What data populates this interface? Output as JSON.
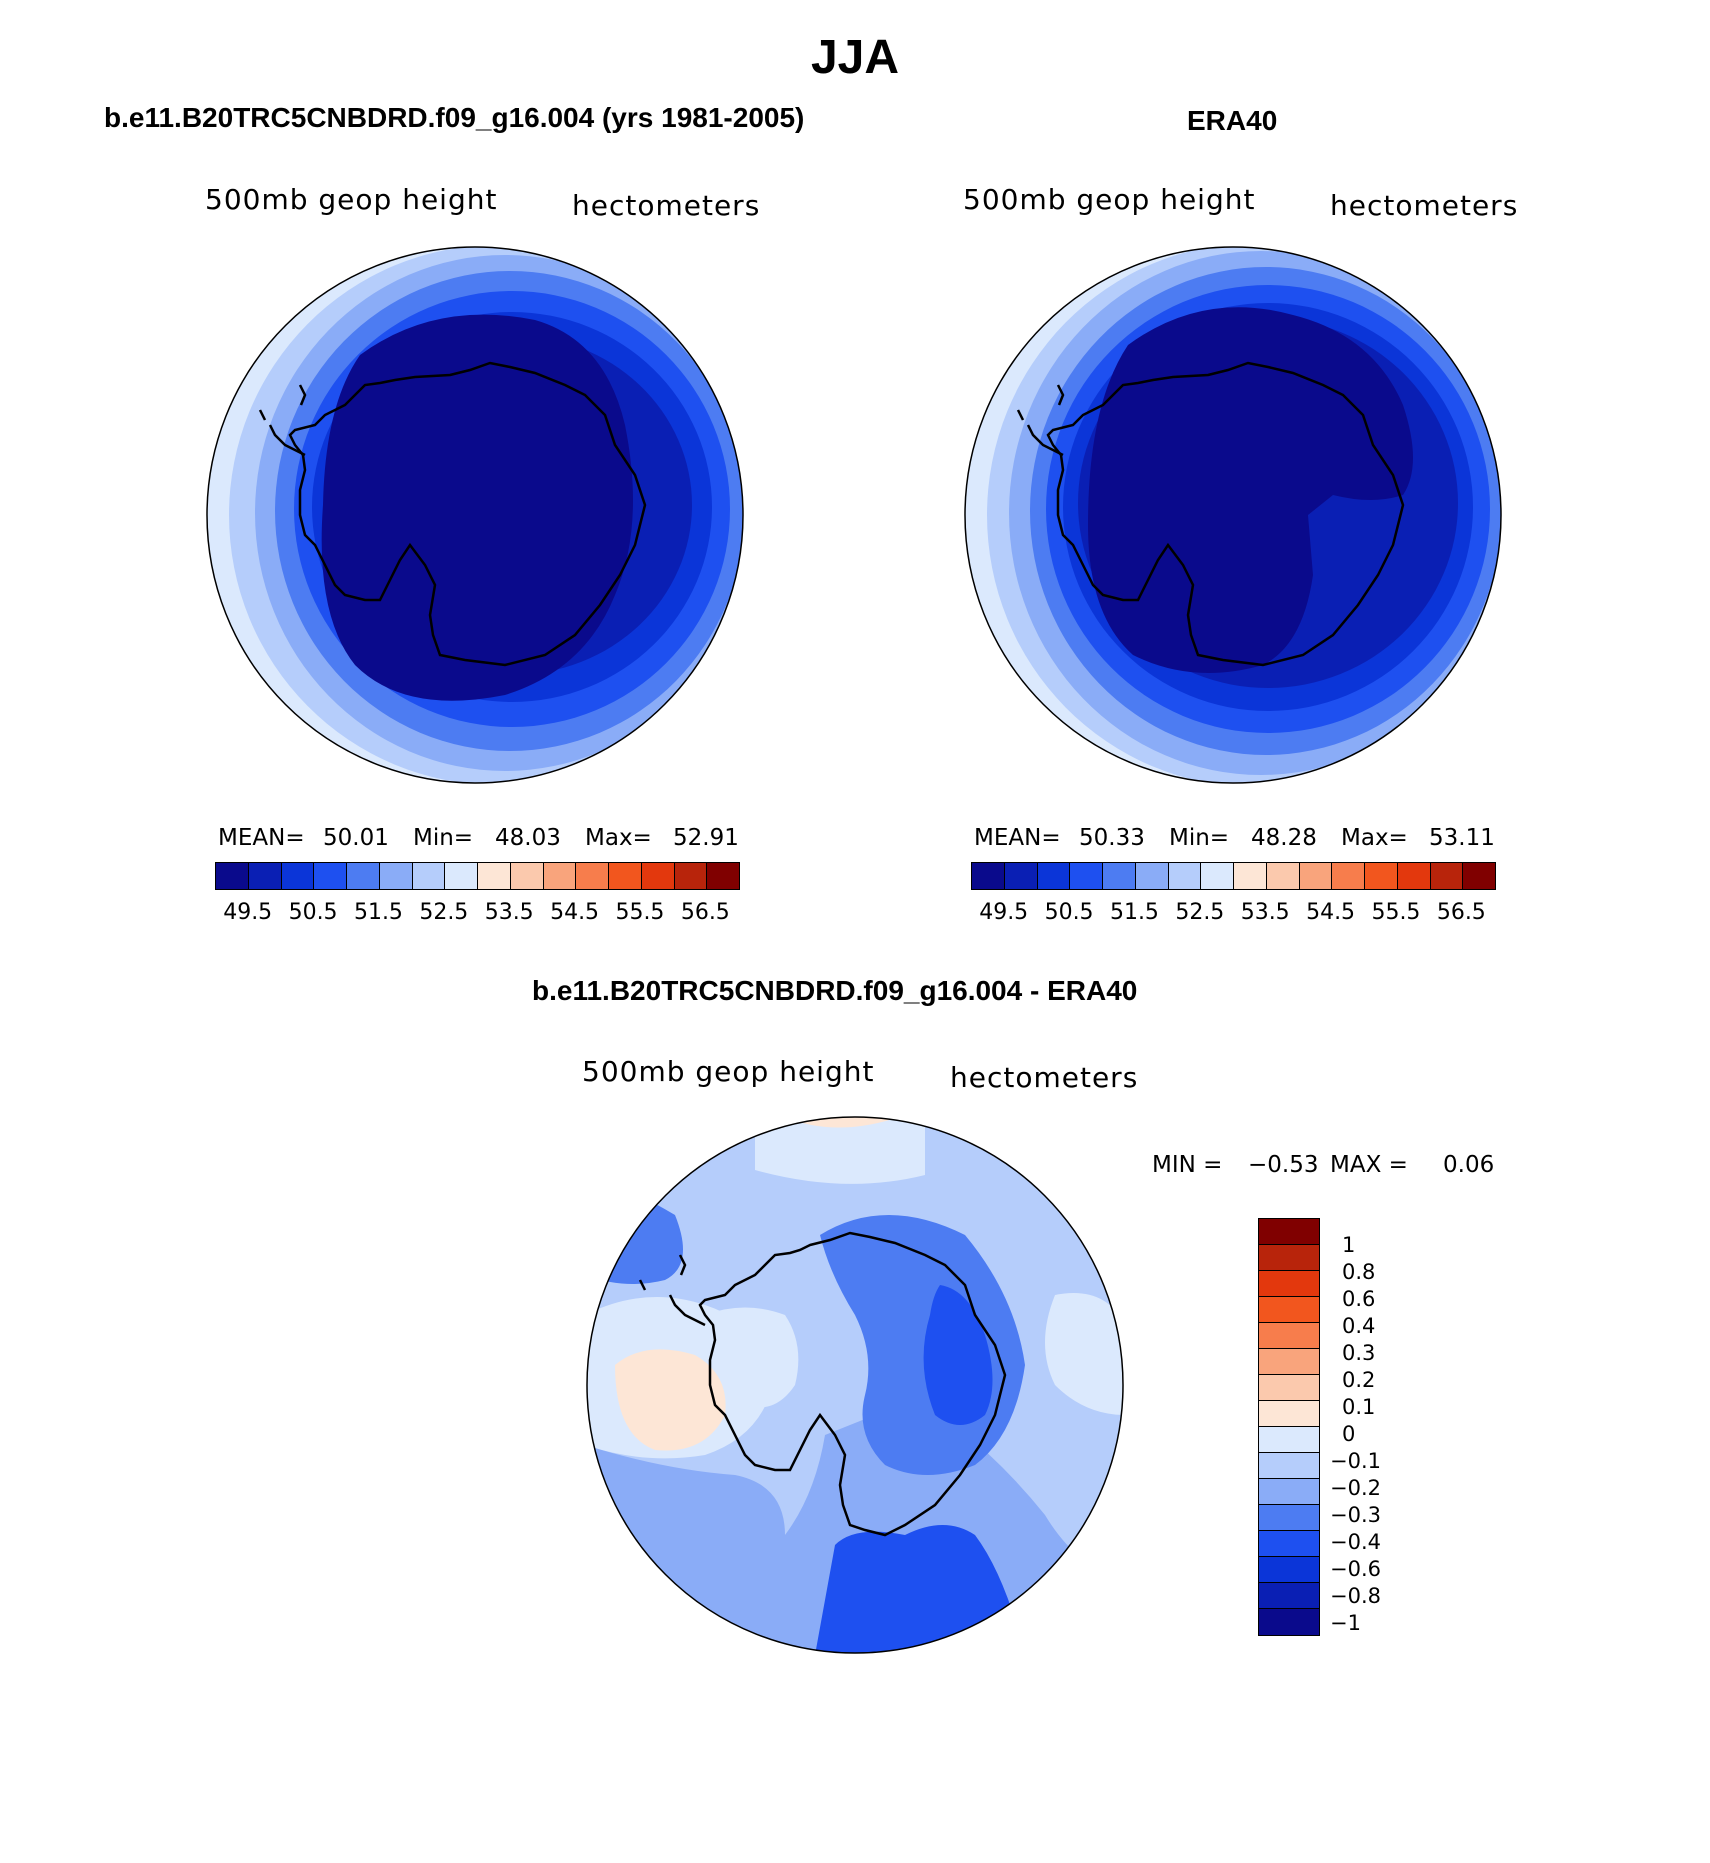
{
  "title": "JJA",
  "panels": [
    {
      "title": "b.e11.B20TRC5CNBDRD.f09_g16.004 (yrs 1981-2005)",
      "left_label": "500mb  geop  height",
      "right_label": "hectometers",
      "stats": {
        "mean_label": "MEAN=",
        "mean": "50.01",
        "min_label": "Min=",
        "min": "48.03",
        "max_label": "Max=",
        "max": "52.91"
      }
    },
    {
      "title": "ERA40",
      "left_label": "500mb  geop  height",
      "right_label": "hectometers",
      "stats": {
        "mean_label": "MEAN=",
        "mean": "50.33",
        "min_label": "Min=",
        "min": "48.28",
        "max_label": "Max=",
        "max": "53.11"
      }
    },
    {
      "title": "b.e11.B20TRC5CNBDRD.f09_g16.004 - ERA40",
      "left_label": "500mb  geop  height",
      "right_label": "hectometers",
      "stats": {
        "min_label": "MIN =",
        "min": "−0.53",
        "max_label": "MAX =",
        "max": "0.06"
      }
    }
  ],
  "colorbar_abs": {
    "colors": [
      "#0a0a8c",
      "#0a1fb4",
      "#0b35d8",
      "#1e50f0",
      "#4d7cf2",
      "#8aacf7",
      "#b5cdfb",
      "#dbe9fd",
      "#fde6d6",
      "#fbc9ad",
      "#f9a47c",
      "#f77d4c",
      "#f2561e",
      "#e3380d",
      "#b8240b",
      "#800000"
    ],
    "labels": [
      "49.5",
      "50.5",
      "51.5",
      "52.5",
      "53.5",
      "54.5",
      "55.5",
      "56.5"
    ]
  },
  "colorbar_diff": {
    "colors": [
      "#800000",
      "#b8240b",
      "#e3380d",
      "#f2561e",
      "#f77d4c",
      "#f9a47c",
      "#fbc9ad",
      "#fde6d6",
      "#dbe9fd",
      "#b5cdfb",
      "#8aacf7",
      "#4d7cf2",
      "#1e50f0",
      "#0b35d8",
      "#0a1fb4",
      "#0a0a8c"
    ],
    "labels": [
      "1",
      "0.8",
      "0.6",
      "0.4",
      "0.3",
      "0.2",
      "0.1",
      "0",
      "−0.1",
      "−0.2",
      "−0.3",
      "−0.4",
      "−0.6",
      "−0.8",
      "−1"
    ]
  }
}
